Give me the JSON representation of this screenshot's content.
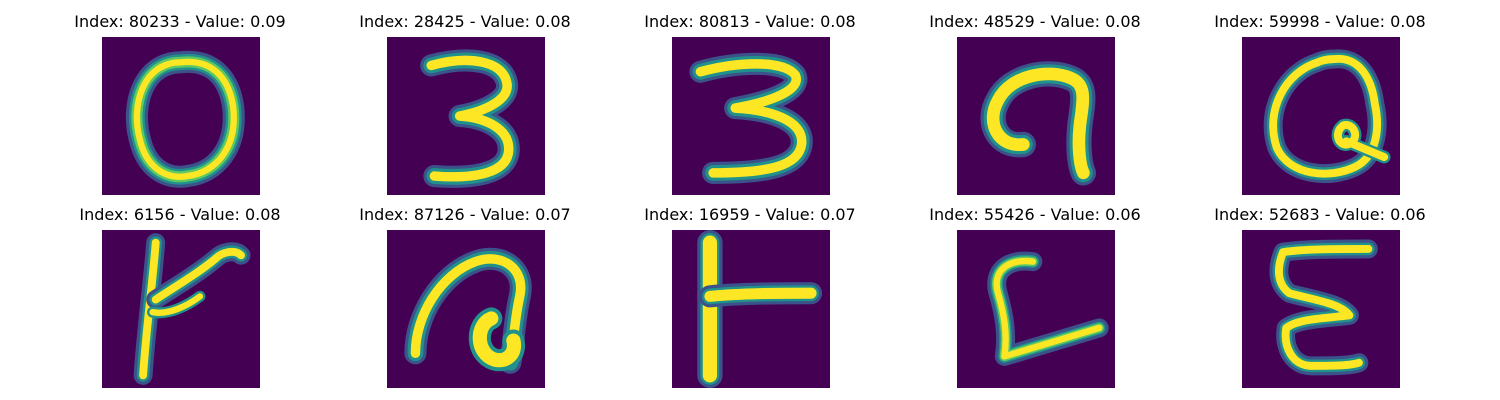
{
  "colors": {
    "background": "#440154",
    "stroke_core": "#FDE725",
    "stroke_mid": "#5EC962",
    "stroke_edge": "#21918C",
    "stroke_outer": "#3B528B"
  },
  "panels": [
    {
      "title": "Index: 80233 - Value: 0.09",
      "glyph": "0"
    },
    {
      "title": "Index: 28425 - Value: 0.08",
      "glyph": "3"
    },
    {
      "title": "Index: 80813 - Value: 0.08",
      "glyph": "3"
    },
    {
      "title": "Index: 48529 - Value: 0.08",
      "glyph": "hook"
    },
    {
      "title": "Index: 59998 - Value: 0.08",
      "glyph": "Q"
    },
    {
      "title": "Index: 6156 - Value: 0.08",
      "glyph": "k"
    },
    {
      "title": "Index: 87126 - Value: 0.07",
      "glyph": "a"
    },
    {
      "title": "Index: 16959 - Value: 0.07",
      "glyph": "T"
    },
    {
      "title": "Index: 55426 - Value: 0.06",
      "glyph": "L"
    },
    {
      "title": "Index: 52683 - Value: 0.06",
      "glyph": "E"
    }
  ]
}
